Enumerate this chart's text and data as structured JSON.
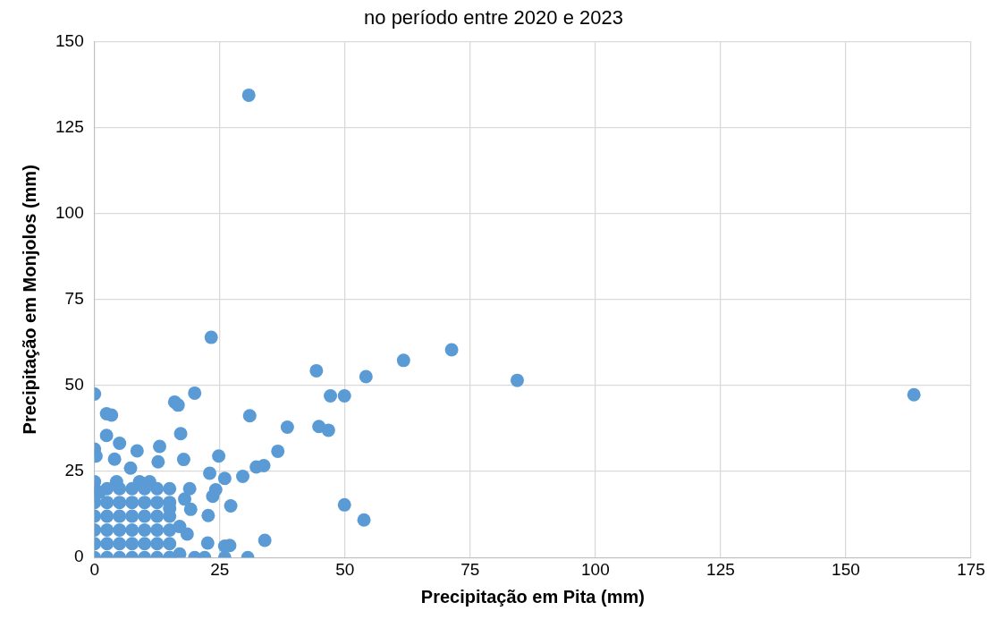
{
  "chart_data": {
    "type": "scatter",
    "title": "no período entre 2020 e 2023",
    "xlabel": "Precipitação em Pita (mm)",
    "ylabel": "Precipitação em Monjolos (mm)",
    "xlim": [
      0,
      175
    ],
    "xticks": [
      0,
      25,
      50,
      75,
      100,
      125,
      150,
      175
    ],
    "ylim": [
      0,
      150
    ],
    "yticks": [
      0,
      25,
      50,
      75,
      100,
      125,
      150
    ],
    "grid": true,
    "legend": false,
    "marker": "circle",
    "series": [
      {
        "color": "#5b9bd5",
        "x": [
          30.8,
          23.3,
          163.6,
          84.4,
          71.3,
          61.7,
          54.2,
          44.3,
          47.1,
          49.9,
          44.8,
          46.7,
          38.5,
          36.6,
          33.8,
          32.3,
          49.9,
          53.8,
          31,
          27.2,
          34,
          30.6,
          27,
          26,
          26,
          0,
          2.4,
          3.4,
          16,
          16.7,
          20,
          17.2,
          2.4,
          5,
          0,
          0.3,
          8.5,
          13,
          0,
          4,
          7.2,
          12.7,
          17.8,
          24.8,
          23,
          29.6,
          26,
          19,
          24.2,
          23.6,
          18,
          15,
          22.7,
          19.2,
          18.5,
          22.6,
          20,
          22,
          17,
          15,
          0,
          0,
          0,
          0,
          0,
          0,
          2.5,
          2.5,
          2.5,
          2.5,
          2.5,
          2.5,
          5,
          5,
          5,
          5,
          5,
          5,
          7.5,
          7.5,
          7.5,
          7.5,
          7.5,
          7.5,
          10,
          10,
          10,
          10,
          10,
          10,
          12.5,
          12.5,
          12.5,
          12.5,
          12.5,
          12.5,
          15,
          15,
          15,
          15,
          15,
          15,
          0,
          1,
          4.4,
          9,
          11,
          17
        ],
        "values": [
          134.4,
          64,
          47.3,
          51.5,
          60.4,
          57.3,
          52.6,
          54.3,
          47,
          47,
          38.1,
          37,
          37.9,
          30.9,
          26.7,
          26.3,
          15.3,
          10.9,
          41.2,
          15,
          5,
          0,
          3.5,
          3.3,
          0,
          47.5,
          41.8,
          41.4,
          45.2,
          44.3,
          47.8,
          36,
          35.5,
          33.2,
          31.5,
          29.5,
          31,
          32.3,
          22,
          28.6,
          26,
          27.8,
          28.5,
          29.5,
          24.5,
          23.6,
          23,
          20,
          19.7,
          17.8,
          17,
          14.2,
          12.2,
          14,
          6.8,
          4.2,
          0,
          0,
          1,
          0,
          0,
          4,
          8,
          12,
          16,
          20,
          0,
          4,
          8,
          12,
          16,
          20,
          0,
          4,
          8,
          12,
          16,
          20,
          0,
          4,
          8,
          12,
          16,
          20,
          0,
          4,
          8,
          12,
          16,
          20,
          0,
          4,
          8,
          12,
          16,
          20,
          0,
          4,
          8,
          12,
          16,
          20,
          18,
          19,
          22,
          22,
          22,
          9
        ]
      }
    ]
  }
}
